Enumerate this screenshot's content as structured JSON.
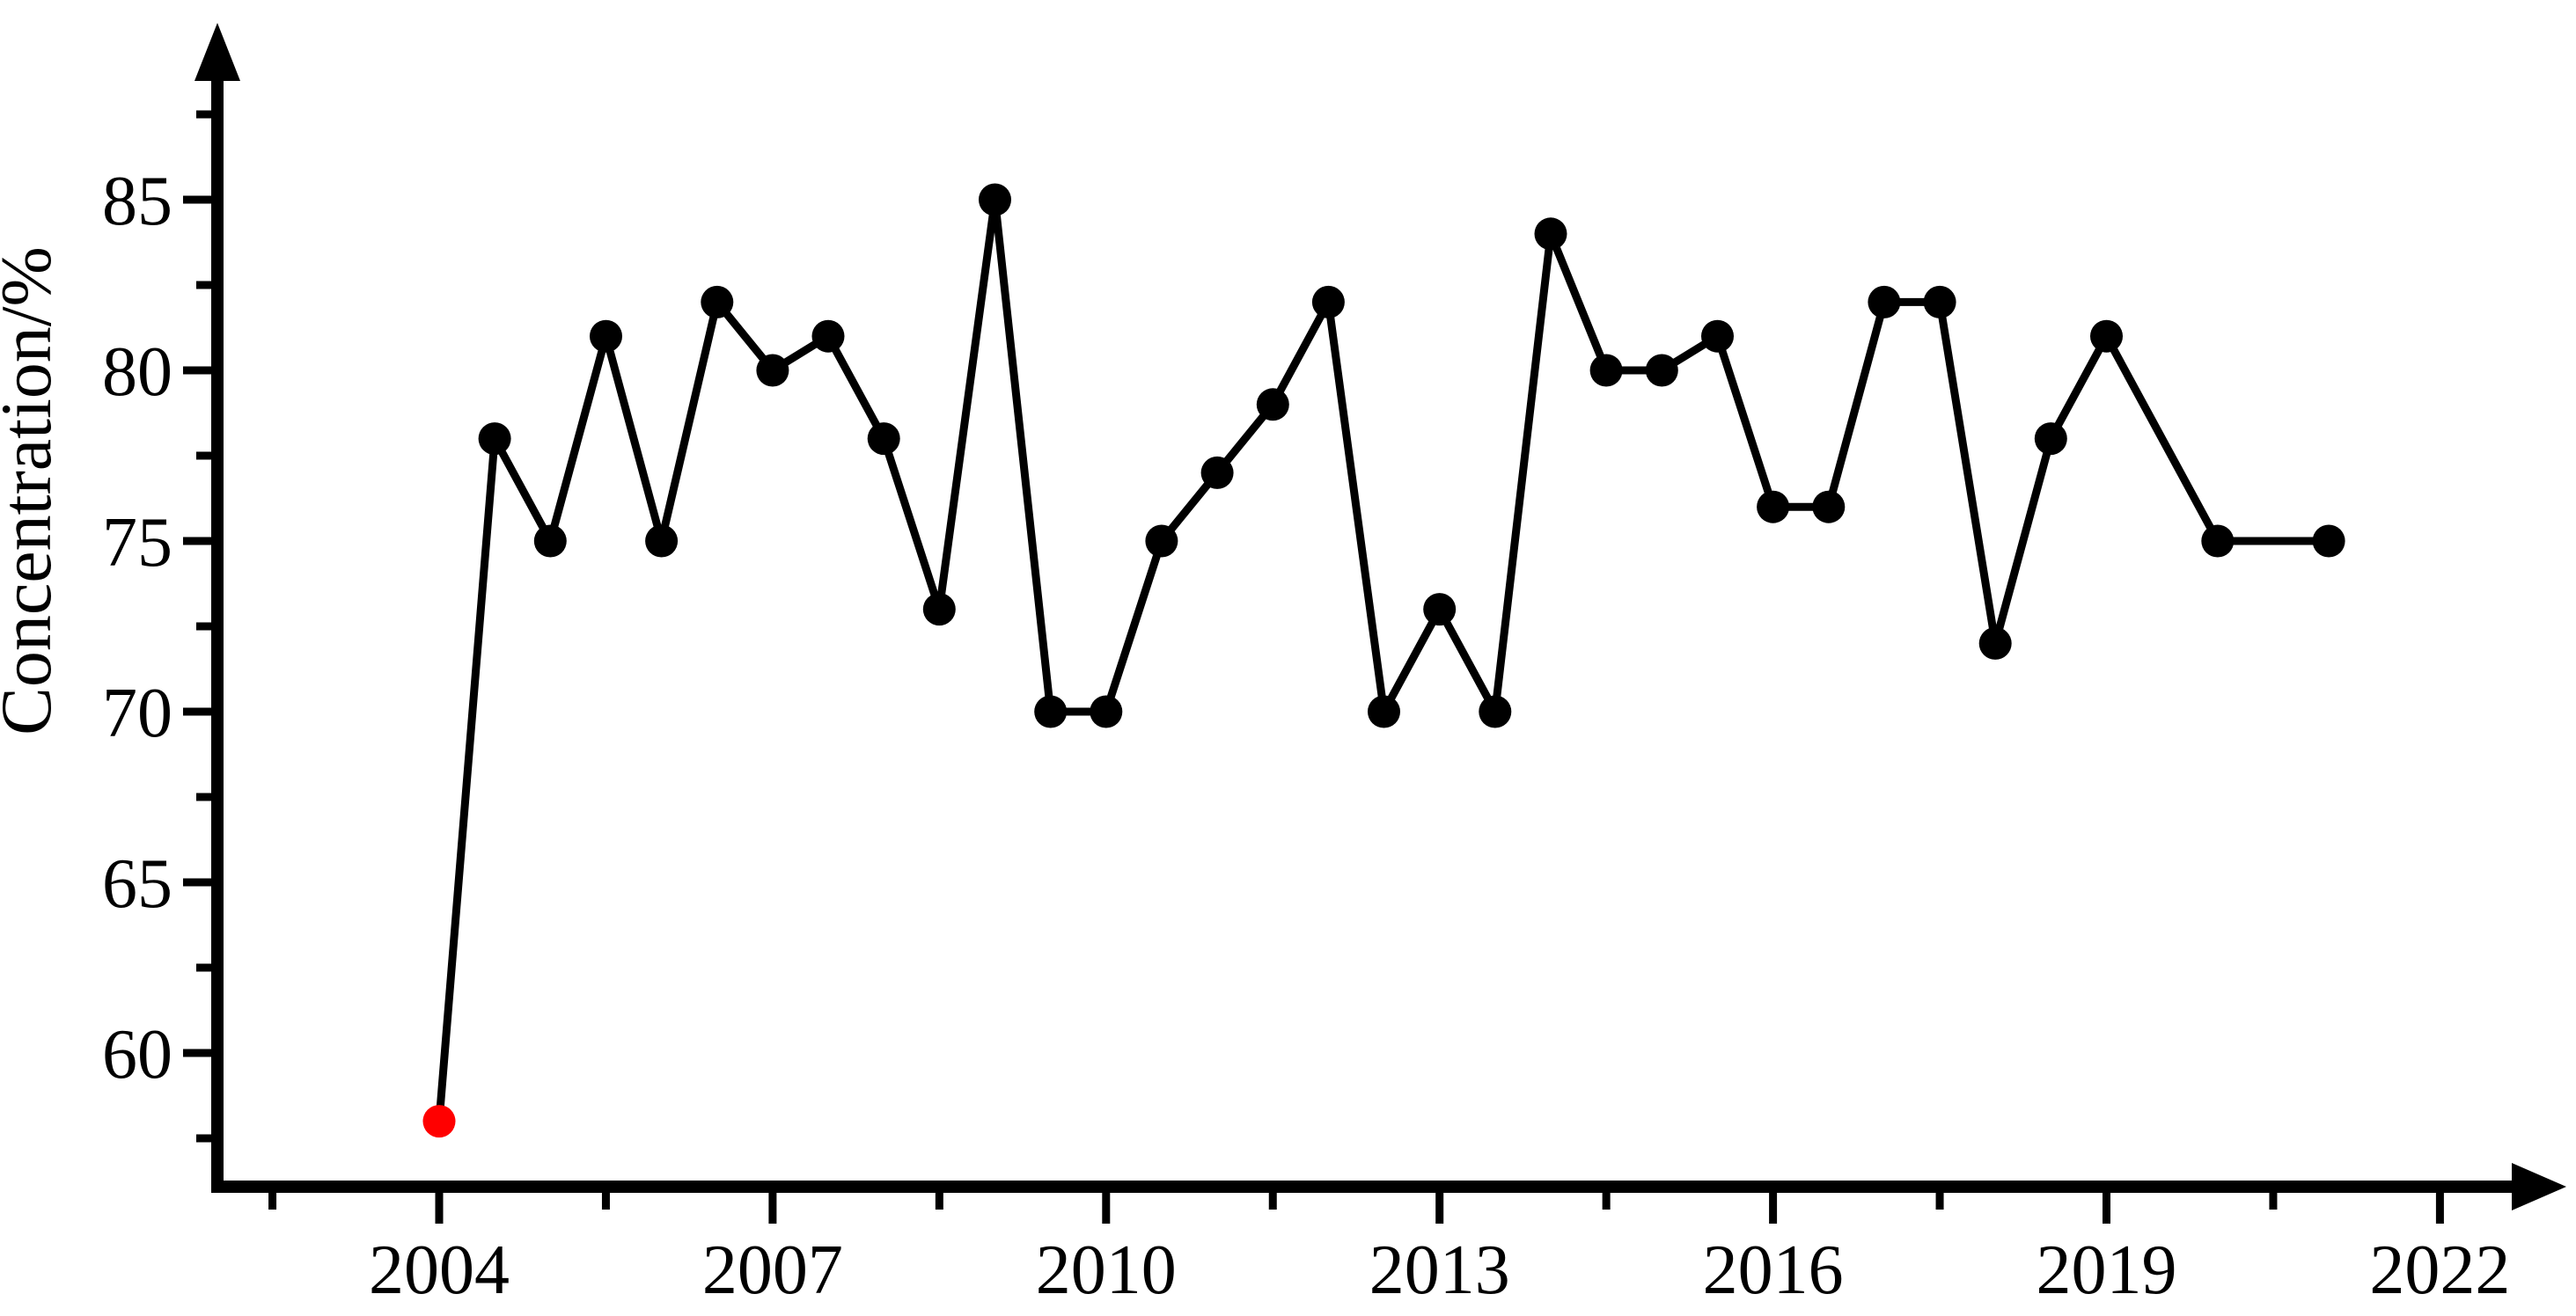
{
  "chart_data": {
    "type": "line",
    "title": "",
    "xlabel": "",
    "ylabel": "Concentration/%",
    "x": [
      2004,
      2004.5,
      2005,
      2005.5,
      2006,
      2006.5,
      2007,
      2007.5,
      2008,
      2008.5,
      2009,
      2009.5,
      2010,
      2010.5,
      2011,
      2011.5,
      2012,
      2012.5,
      2013,
      2013.5,
      2014,
      2014.5,
      2015,
      2015.5,
      2016,
      2016.5,
      2017,
      2017.5,
      2018,
      2018.5,
      2019,
      2020,
      2021
    ],
    "values": [
      58,
      78,
      75,
      81,
      75,
      82,
      80,
      81,
      78,
      73,
      85,
      70,
      70,
      75,
      77,
      79,
      82,
      70,
      73,
      70,
      84,
      80,
      80,
      81,
      76,
      76,
      82,
      82,
      72,
      78,
      81,
      75,
      75
    ],
    "highlighted_point": {
      "x": 2004,
      "value": 58,
      "color": "#ff0000"
    },
    "series_color": "#000000",
    "point_color": "#000000",
    "background_color": "#ffffff",
    "x_ticks_major": [
      2004,
      2007,
      2010,
      2013,
      2016,
      2019,
      2022
    ],
    "x_tick_labels": [
      "2004",
      "2007",
      "2010",
      "2013",
      "2016",
      "2019",
      "2022"
    ],
    "x_ticks_minor": [
      2002.5,
      2005.5,
      2008.5,
      2011.5,
      2014.5,
      2017.5,
      2020.5
    ],
    "y_ticks_major": [
      85,
      80,
      75,
      70,
      65,
      60
    ],
    "y_tick_labels": [
      "85",
      "80",
      "75",
      "70",
      "65",
      "60"
    ],
    "y_ticks_minor": [
      87.5,
      82.5,
      77.5,
      72.5,
      67.5,
      62.5,
      57.5
    ],
    "xlim": [
      2002,
      2023.3
    ],
    "ylim": [
      56,
      90
    ],
    "grid": "off",
    "legend": "none",
    "axis_arrows": [
      "y-top",
      "x-right"
    ]
  }
}
